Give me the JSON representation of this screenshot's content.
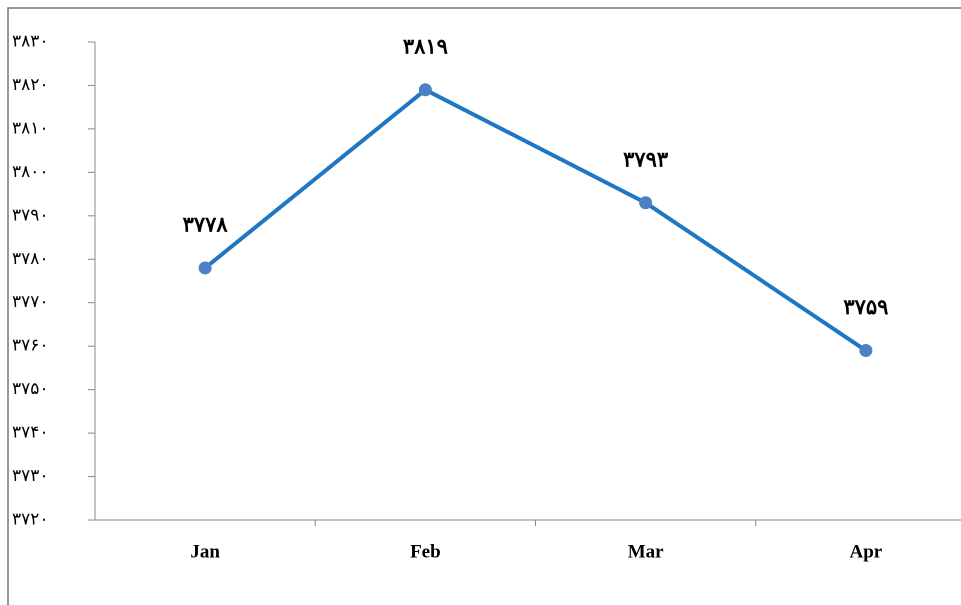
{
  "chart_data": {
    "type": "line",
    "categories": [
      "Jan",
      "Feb",
      "Mar",
      "Apr"
    ],
    "series": [
      {
        "color": "#1f77c4",
        "values": [
          3778,
          3819,
          3793,
          3759
        ],
        "value_labels": [
          "۳۷۷۸",
          "۳۸۱۹",
          "۳۷۹۳",
          "۳۷۵۹"
        ]
      }
    ],
    "ylim": [
      3720,
      3830
    ],
    "yticks": [
      {
        "value": 3720,
        "label": "۳۷۲۰"
      },
      {
        "value": 3730,
        "label": "۳۷۳۰"
      },
      {
        "value": 3740,
        "label": "۳۷۴۰"
      },
      {
        "value": 3750,
        "label": "۳۷۵۰"
      },
      {
        "value": 3760,
        "label": "۳۷۶۰"
      },
      {
        "value": 3770,
        "label": "۳۷۷۰"
      },
      {
        "value": 3780,
        "label": "۳۷۸۰"
      },
      {
        "value": 3790,
        "label": "۳۷۹۰"
      },
      {
        "value": 3800,
        "label": "۳۸۰۰"
      },
      {
        "value": 3810,
        "label": "۳۸۱۰"
      },
      {
        "value": 3820,
        "label": "۳۸۲۰"
      },
      {
        "value": 3830,
        "label": "۳۸۳۰"
      }
    ],
    "grid": false
  }
}
